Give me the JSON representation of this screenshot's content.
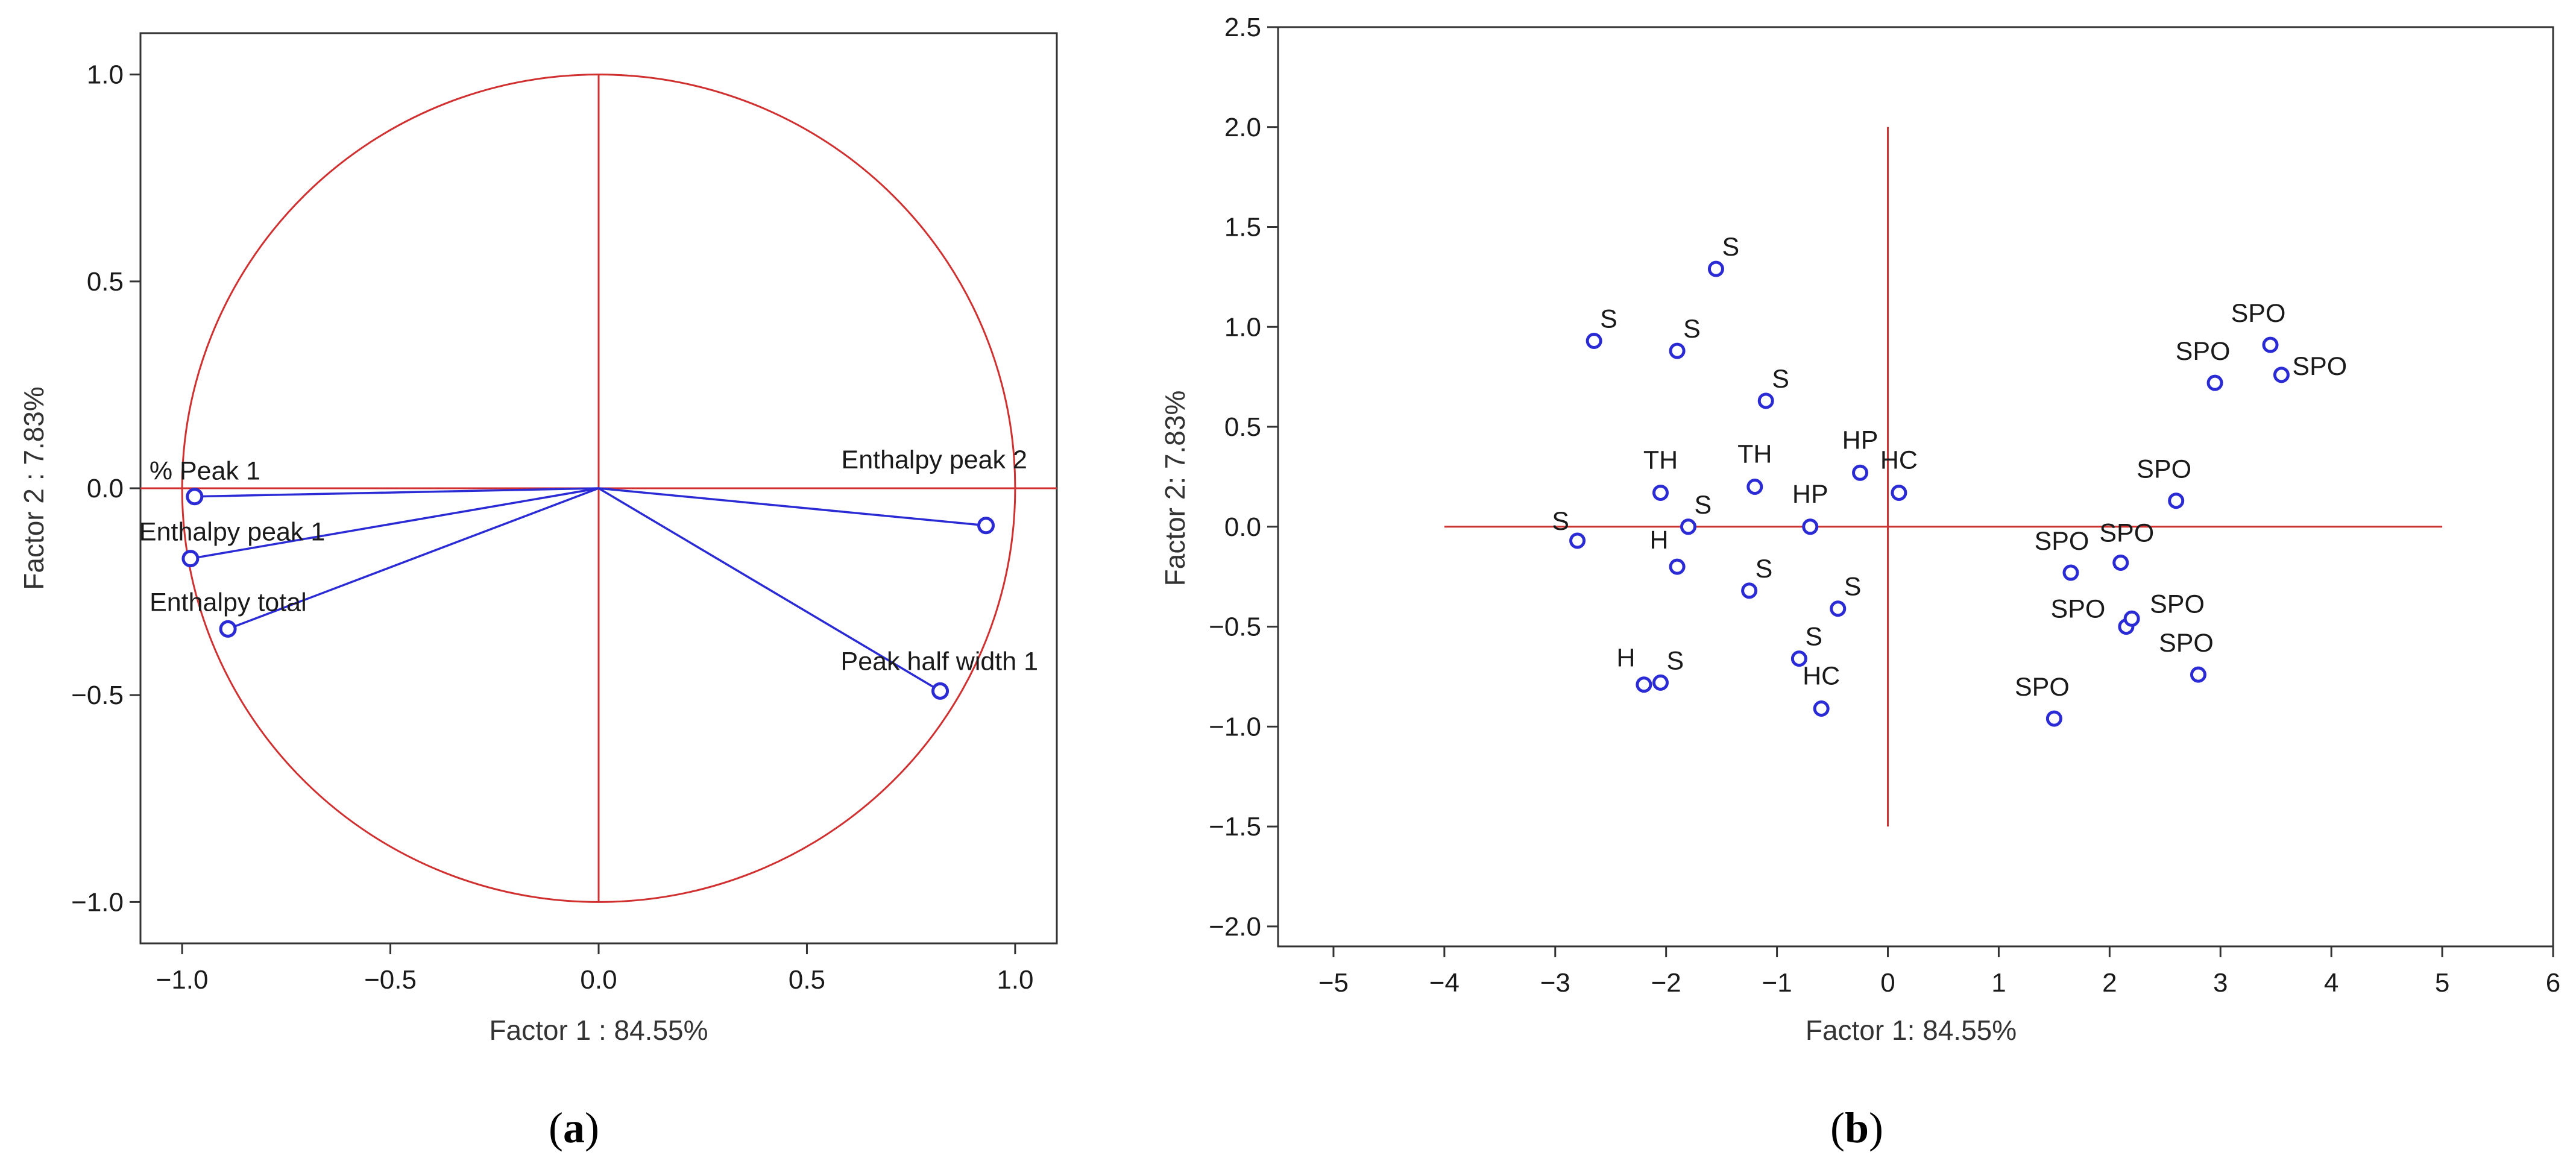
{
  "colors": {
    "axis_line": "#d03030",
    "vector": "#2b2bd6",
    "marker": "#2b2bd6",
    "frame": "#333333"
  },
  "chart_data": [
    {
      "id": "a",
      "type": "scatter",
      "subtype": "correlation-circle",
      "caption": {
        "open": "(",
        "letter": "a",
        "close": ")"
      },
      "xlabel": "Factor 1 : 84.55%",
      "ylabel": "Factor 2 :  7.83%",
      "xlim": [
        -1.1,
        1.1
      ],
      "ylim": [
        -1.1,
        1.1
      ],
      "xticks": [
        -1.0,
        -0.5,
        0.0,
        0.5,
        1.0
      ],
      "xtick_labels": [
        "−1.0",
        "−0.5",
        "0.0",
        "0.5",
        "1.0"
      ],
      "yticks": [
        1.0,
        0.5,
        0.0,
        -0.5,
        -1.0
      ],
      "ytick_labels": [
        "1.0",
        "0.5",
        "0.0",
        "−0.5",
        "−1.0"
      ],
      "unit_circle": true,
      "reference_lines": {
        "x": [
          0
        ],
        "y": [
          0
        ]
      },
      "vectors": [
        {
          "name": "% Peak 1",
          "x": -0.97,
          "y": -0.02
        },
        {
          "name": "Enthalpy peak 1",
          "x": -0.98,
          "y": -0.17
        },
        {
          "name": "Enthalpy total",
          "x": -0.89,
          "y": -0.34
        },
        {
          "name": "Enthalpy peak 2",
          "x": 0.93,
          "y": -0.09
        },
        {
          "name": "Peak half width 1",
          "x": 0.82,
          "y": -0.49
        }
      ]
    },
    {
      "id": "b",
      "type": "scatter",
      "caption": {
        "open": "(",
        "letter": "b",
        "close": ")"
      },
      "xlabel": "Factor 1: 84.55%",
      "ylabel": "Factor 2:  7.83%",
      "xlim": [
        -5.5,
        6
      ],
      "ylim": [
        -2.1,
        2.5
      ],
      "xticks": [
        -5,
        -4,
        -3,
        -2,
        -1,
        0,
        1,
        2,
        3,
        4,
        5,
        6
      ],
      "xtick_labels": [
        "−5",
        "−4",
        "−3",
        "−2",
        "−1",
        "0",
        "1",
        "2",
        "3",
        "4",
        "5",
        "6"
      ],
      "yticks": [
        2.5,
        2.0,
        1.5,
        1.0,
        0.5,
        0.0,
        -0.5,
        -1.0,
        -1.5,
        -2.0
      ],
      "ytick_labels": [
        "2.5",
        "2.0",
        "1.5",
        "1.0",
        "0.5",
        "0.0",
        "−0.5",
        "−1.0",
        "−1.5",
        "−2.0"
      ],
      "reference_lines": {
        "hline": {
          "y": 0,
          "x_from": -4,
          "x_to": 5
        },
        "vline": {
          "x": 0,
          "y_from": -1.5,
          "y_to": 2.0
        }
      },
      "points": [
        {
          "label": "S",
          "x": -1.55,
          "y": 1.29
        },
        {
          "label": "S",
          "x": -2.65,
          "y": 0.93
        },
        {
          "label": "S",
          "x": -1.9,
          "y": 0.88
        },
        {
          "label": "S",
          "x": -1.1,
          "y": 0.63
        },
        {
          "label": "TH",
          "x": -2.05,
          "y": 0.17
        },
        {
          "label": "TH",
          "x": -1.2,
          "y": 0.2
        },
        {
          "label": "HP",
          "x": -0.25,
          "y": 0.27
        },
        {
          "label": "HC",
          "x": 0.1,
          "y": 0.17
        },
        {
          "label": "HP",
          "x": -0.7,
          "y": 0.0
        },
        {
          "label": "S",
          "x": -2.8,
          "y": -0.07
        },
        {
          "label": "S",
          "x": -1.8,
          "y": 0.0
        },
        {
          "label": "H",
          "x": -1.9,
          "y": -0.2
        },
        {
          "label": "S",
          "x": -1.25,
          "y": -0.32
        },
        {
          "label": "S",
          "x": -0.45,
          "y": -0.41
        },
        {
          "label": "S",
          "x": -0.8,
          "y": -0.66
        },
        {
          "label": "HC",
          "x": -0.6,
          "y": -0.91
        },
        {
          "label": "H",
          "x": -2.2,
          "y": -0.79
        },
        {
          "label": "S",
          "x": -2.05,
          "y": -0.78
        },
        {
          "label": "SPO",
          "x": 3.45,
          "y": 0.91
        },
        {
          "label": "SPO",
          "x": 2.95,
          "y": 0.72
        },
        {
          "label": "SPO",
          "x": 3.55,
          "y": 0.76
        },
        {
          "label": "SPO",
          "x": 2.6,
          "y": 0.13
        },
        {
          "label": "SPO",
          "x": 1.65,
          "y": -0.23
        },
        {
          "label": "SPO",
          "x": 2.1,
          "y": -0.18
        },
        {
          "label": "SPO",
          "x": 2.15,
          "y": -0.5
        },
        {
          "label": "SPO",
          "x": 2.2,
          "y": -0.46
        },
        {
          "label": "SPO",
          "x": 2.8,
          "y": -0.74
        },
        {
          "label": "SPO",
          "x": 1.5,
          "y": -0.96
        }
      ]
    }
  ]
}
